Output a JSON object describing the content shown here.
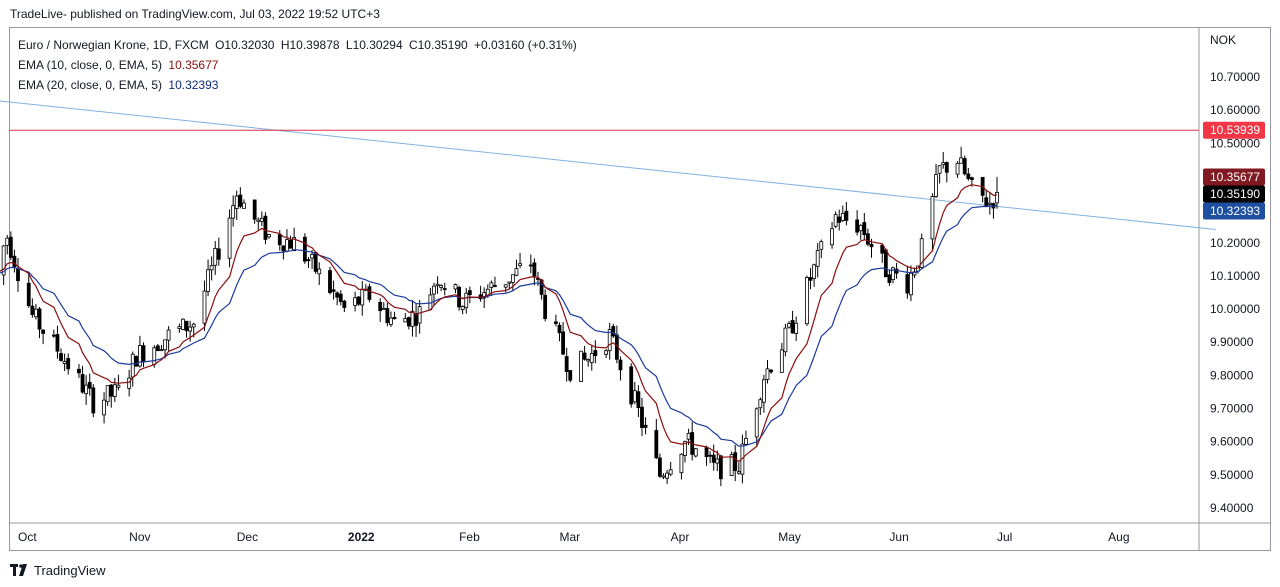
{
  "header": {
    "publish_line": "TradeLive- published on TradingView.com, Jul 03, 2022 19:52 UTC+3"
  },
  "legend": {
    "symbol": "Euro / Norwegian Krone, 1D, FXCM",
    "open": "O10.32030",
    "high": "H10.39878",
    "low": "L10.30294",
    "close": "C10.35190",
    "change": "+0.03160 (+0.31%)",
    "ema10_label": "EMA (10, close, 0, EMA, 5)",
    "ema10_value": "10.35677",
    "ema20_label": "EMA (20, close, 0, EMA, 5)",
    "ema20_value": "10.32393"
  },
  "footer": {
    "brand": "TradingView"
  },
  "colors": {
    "ema10": "#880e0e",
    "ema20": "#1c3a9e",
    "trendline": "#7fb2e0",
    "resistance": "#e0314b",
    "candle_up": "#ffffff",
    "candle_down": "#000000",
    "outline": "#000000",
    "tag_resistance": "#f23645",
    "tag_ema10": "#801922",
    "tag_close": "#000000",
    "tag_ema20": "#1e4fa0"
  },
  "chart_data": {
    "type": "candlestick",
    "currency": "NOK",
    "ylim": [
      9.35,
      10.82
    ],
    "yticks": [
      "10.70000",
      "10.60000",
      "10.50000",
      "10.20000",
      "10.10000",
      "10.00000",
      "9.90000",
      "9.80000",
      "9.70000",
      "9.60000",
      "9.50000",
      "9.40000"
    ],
    "ytick_values": [
      10.7,
      10.6,
      10.5,
      10.2,
      10.1,
      10.0,
      9.9,
      9.8,
      9.7,
      9.6,
      9.5,
      9.4
    ],
    "xticks": [
      {
        "label": "Oct",
        "date": "2021-10-01",
        "bold": false
      },
      {
        "label": "Nov",
        "date": "2021-11-01",
        "bold": false
      },
      {
        "label": "Dec",
        "date": "2021-12-01",
        "bold": false
      },
      {
        "label": "2022",
        "date": "2022-01-01",
        "bold": true
      },
      {
        "label": "Feb",
        "date": "2022-02-01",
        "bold": false
      },
      {
        "label": "Mar",
        "date": "2022-03-01",
        "bold": false
      },
      {
        "label": "Apr",
        "date": "2022-04-01",
        "bold": false
      },
      {
        "label": "May",
        "date": "2022-05-01",
        "bold": false
      },
      {
        "label": "Jun",
        "date": "2022-06-01",
        "bold": false
      },
      {
        "label": "Jul",
        "date": "2022-07-01",
        "bold": false
      },
      {
        "label": "Aug",
        "date": "2022-08-01",
        "bold": false
      }
    ],
    "anchors": [
      {
        "date": "2021-09-24",
        "price": 10.1
      },
      {
        "date": "2021-09-28",
        "price": 10.22
      },
      {
        "date": "2021-10-05",
        "price": 9.98
      },
      {
        "date": "2021-10-12",
        "price": 9.88
      },
      {
        "date": "2021-10-22",
        "price": 9.72
      },
      {
        "date": "2021-10-29",
        "price": 9.75
      },
      {
        "date": "2021-11-03",
        "price": 9.86
      },
      {
        "date": "2021-11-12",
        "price": 9.92
      },
      {
        "date": "2021-11-19",
        "price": 9.96
      },
      {
        "date": "2021-11-26",
        "price": 10.18
      },
      {
        "date": "2021-12-01",
        "price": 10.35
      },
      {
        "date": "2021-12-06",
        "price": 10.27
      },
      {
        "date": "2021-12-10",
        "price": 10.22
      },
      {
        "date": "2021-12-17",
        "price": 10.2
      },
      {
        "date": "2021-12-23",
        "price": 10.12
      },
      {
        "date": "2021-12-31",
        "price": 10.0
      },
      {
        "date": "2022-01-07",
        "price": 10.04
      },
      {
        "date": "2022-01-14",
        "price": 9.96
      },
      {
        "date": "2022-01-21",
        "price": 9.99
      },
      {
        "date": "2022-01-26",
        "price": 10.1
      },
      {
        "date": "2022-02-02",
        "price": 10.02
      },
      {
        "date": "2022-02-09",
        "price": 10.06
      },
      {
        "date": "2022-02-16",
        "price": 10.1
      },
      {
        "date": "2022-02-21",
        "price": 10.14
      },
      {
        "date": "2022-02-25",
        "price": 10.0
      },
      {
        "date": "2022-03-04",
        "price": 9.82
      },
      {
        "date": "2022-03-09",
        "price": 9.85
      },
      {
        "date": "2022-03-15",
        "price": 9.92
      },
      {
        "date": "2022-03-22",
        "price": 9.72
      },
      {
        "date": "2022-03-29",
        "price": 9.5
      },
      {
        "date": "2022-04-05",
        "price": 9.6
      },
      {
        "date": "2022-04-08",
        "price": 9.58
      },
      {
        "date": "2022-04-13",
        "price": 9.52
      },
      {
        "date": "2022-04-20",
        "price": 9.53
      },
      {
        "date": "2022-04-27",
        "price": 9.8
      },
      {
        "date": "2022-05-04",
        "price": 9.93
      },
      {
        "date": "2022-05-11",
        "price": 10.12
      },
      {
        "date": "2022-05-17",
        "price": 10.28
      },
      {
        "date": "2022-05-24",
        "price": 10.25
      },
      {
        "date": "2022-05-31",
        "price": 10.12
      },
      {
        "date": "2022-06-06",
        "price": 10.08
      },
      {
        "date": "2022-06-10",
        "price": 10.18
      },
      {
        "date": "2022-06-15",
        "price": 10.42
      },
      {
        "date": "2022-06-20",
        "price": 10.45
      },
      {
        "date": "2022-06-24",
        "price": 10.36
      },
      {
        "date": "2022-06-29",
        "price": 10.32
      },
      {
        "date": "2022-07-01",
        "price": 10.35
      }
    ],
    "trendline": {
      "start": {
        "date": "2021-09-24",
        "price": 10.63
      },
      "end": {
        "date": "2022-08-31",
        "price": 10.24
      }
    },
    "resistance": {
      "price": 10.53939
    },
    "price_tags": [
      {
        "label": "10.53939",
        "price": 10.53939,
        "role": "resistance"
      },
      {
        "label": "10.35677",
        "price": 10.35677,
        "role": "ema10"
      },
      {
        "label": "10.35190",
        "price": 10.3519,
        "role": "close"
      },
      {
        "label": "10.32393",
        "price": 10.32393,
        "role": "ema20"
      }
    ]
  }
}
